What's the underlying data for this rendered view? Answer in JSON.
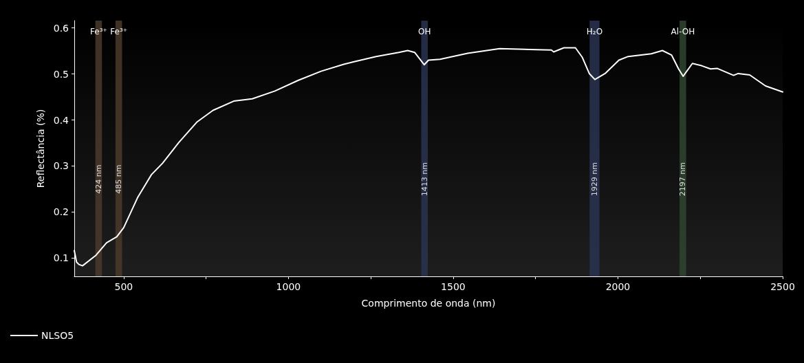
{
  "chart_data": {
    "type": "line",
    "xlabel": "Comprimento de onda (nm)",
    "ylabel": "Reflectância (%)",
    "xlim": [
      350,
      2500
    ],
    "xticks": [
      500,
      {
        "value": 750,
        "label": null
      },
      1000,
      {
        "value": 1250,
        "label": null
      },
      1500,
      {
        "value": 1750,
        "label": null
      },
      2000,
      {
        "value": 2250,
        "label": null
      },
      2500
    ],
    "ylim": [
      0.06,
      0.616
    ],
    "yticks": [
      0.1,
      0.2,
      0.3,
      0.4,
      0.5,
      0.6
    ],
    "grid": false,
    "legend": "bottom left",
    "marker": "none",
    "line_style": "solid",
    "series": [
      {
        "name": "NLSO5",
        "color": "#ffffff",
        "x": [
          350,
          357,
          364,
          375,
          416,
          448,
          479,
          500,
          542,
          584,
          618,
          667,
          723,
          771,
          834,
          890,
          959,
          1029,
          1099,
          1168,
          1195,
          1266,
          1335,
          1362,
          1383,
          1412,
          1425,
          1460,
          1544,
          1641,
          1753,
          1798,
          1805,
          1836,
          1871,
          1892,
          1913,
          1930,
          1961,
          2003,
          2031,
          2101,
          2135,
          2163,
          2184,
          2198,
          2226,
          2254,
          2281,
          2302,
          2351,
          2365,
          2400,
          2448,
          2500
        ],
        "values": [
          0.116,
          0.091,
          0.086,
          0.083,
          0.106,
          0.133,
          0.146,
          0.166,
          0.231,
          0.281,
          0.306,
          0.351,
          0.396,
          0.421,
          0.441,
          0.446,
          0.463,
          0.486,
          0.506,
          0.521,
          0.526,
          0.538,
          0.547,
          0.551,
          0.547,
          0.52,
          0.53,
          0.532,
          0.545,
          0.555,
          0.553,
          0.552,
          0.548,
          0.557,
          0.557,
          0.536,
          0.501,
          0.488,
          0.501,
          0.53,
          0.538,
          0.544,
          0.551,
          0.541,
          0.511,
          0.495,
          0.523,
          0.518,
          0.511,
          0.512,
          0.497,
          0.501,
          0.498,
          0.474,
          0.461
        ]
      }
    ],
    "bands": [
      {
        "axis": "x",
        "from": 414,
        "to": 434,
        "label": "Fe³⁺",
        "color": "#4b3a2b"
      },
      {
        "axis": "x",
        "from": 475,
        "to": 495,
        "label": "Fe³⁺",
        "color": "#4b3a2b"
      },
      {
        "axis": "x",
        "from": 1403,
        "to": 1423,
        "label": "OH",
        "color": "#2a3350"
      },
      {
        "axis": "x",
        "from": 1914,
        "to": 1944,
        "label": "H₂O",
        "color": "#2a3350"
      },
      {
        "axis": "x",
        "from": 2187,
        "to": 2207,
        "label": "Al-OH",
        "color": "#2f4530"
      }
    ],
    "annotations": [
      "424 nm",
      "485 nm",
      "1413 nm",
      "1929 nm",
      "2197 nm"
    ]
  }
}
